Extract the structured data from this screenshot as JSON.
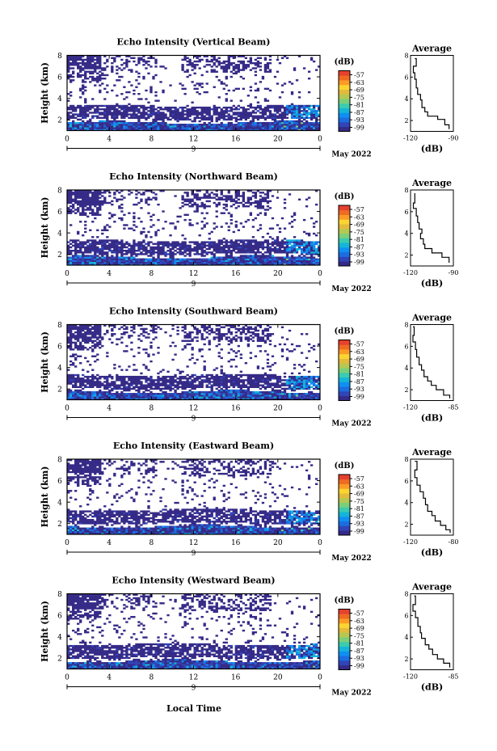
{
  "figure": {
    "xaxis_title": "Local Time",
    "date_label": "May 2022",
    "colorbar_unit": "(dB)",
    "colorbar_ticks": [
      "-57",
      "-63",
      "-69",
      "-75",
      "-81",
      "-87",
      "-93",
      "-99"
    ],
    "colormap": [
      "#352a87",
      "#3144b8",
      "#1b6de0",
      "#0f8ff2",
      "#14b5d8",
      "#3bcbb0",
      "#7ccf7a",
      "#b5c853",
      "#e3bb3c",
      "#fbd430",
      "#fb9b26",
      "#f06b22",
      "#e6412e"
    ],
    "x_ticks": [
      "0",
      "4",
      "8",
      "12",
      "16",
      "20",
      "0"
    ],
    "y_ticks": [
      "2",
      "4",
      "6",
      "8"
    ],
    "y_label": "Height (km)",
    "avg_title": "Average",
    "avg_xlabel": "(dB)"
  },
  "chart_data": [
    {
      "type": "heatmap",
      "title": "Echo Intensity (Vertical Beam)",
      "xlabel": "",
      "ylabel": "Height (km)",
      "xlim": [
        0,
        24
      ],
      "ylim": [
        1,
        8
      ],
      "clim": [
        -99,
        -57
      ],
      "date_tick": "9",
      "avg_xticks": [
        "-120",
        "-90"
      ],
      "average_profile": {
        "type": "line",
        "xlim": [
          -120,
          -90
        ],
        "ylim": [
          1,
          8
        ],
        "points": [
          [
            -117,
            7.7
          ],
          [
            -116,
            7.0
          ],
          [
            -118,
            6.4
          ],
          [
            -117,
            5.8
          ],
          [
            -116,
            5.0
          ],
          [
            -115,
            4.4
          ],
          [
            -113,
            3.9
          ],
          [
            -112,
            3.2
          ],
          [
            -110,
            2.8
          ],
          [
            -108,
            2.4
          ],
          [
            -101,
            2.1
          ],
          [
            -96,
            1.6
          ],
          [
            -93,
            1.2
          ]
        ]
      }
    },
    {
      "type": "heatmap",
      "title": "Echo Intensity (Northward Beam)",
      "xlabel": "",
      "ylabel": "Height (km)",
      "xlim": [
        0,
        24
      ],
      "ylim": [
        1,
        8
      ],
      "clim": [
        -99,
        -57
      ],
      "date_tick": "9",
      "avg_xticks": [
        "-120",
        "-90"
      ],
      "average_profile": {
        "type": "line",
        "xlim": [
          -120,
          -90
        ],
        "ylim": [
          1,
          8
        ],
        "points": [
          [
            -117,
            7.7
          ],
          [
            -117,
            6.8
          ],
          [
            -118,
            6.3
          ],
          [
            -116,
            5.6
          ],
          [
            -115,
            5.0
          ],
          [
            -114,
            4.4
          ],
          [
            -112,
            4.0
          ],
          [
            -113,
            3.5
          ],
          [
            -111,
            3.0
          ],
          [
            -110,
            2.6
          ],
          [
            -105,
            2.2
          ],
          [
            -98,
            1.8
          ],
          [
            -93,
            1.3
          ]
        ]
      }
    },
    {
      "type": "heatmap",
      "title": "Echo Intensity (Southward Beam)",
      "xlabel": "",
      "ylabel": "Height (km)",
      "xlim": [
        0,
        24
      ],
      "ylim": [
        1,
        8
      ],
      "clim": [
        -99,
        -57
      ],
      "date_tick": "9",
      "avg_xticks": [
        "-120",
        "-85"
      ],
      "average_profile": {
        "type": "line",
        "xlim": [
          -120,
          -85
        ],
        "ylim": [
          1,
          8
        ],
        "points": [
          [
            -118,
            7.8
          ],
          [
            -117,
            7.0
          ],
          [
            -118,
            6.4
          ],
          [
            -116,
            5.7
          ],
          [
            -115,
            5.0
          ],
          [
            -113,
            4.3
          ],
          [
            -111,
            3.8
          ],
          [
            -109,
            3.2
          ],
          [
            -106,
            2.8
          ],
          [
            -103,
            2.4
          ],
          [
            -99,
            2.0
          ],
          [
            -93,
            1.5
          ],
          [
            -88,
            1.2
          ]
        ]
      }
    },
    {
      "type": "heatmap",
      "title": "Echo Intensity (Eastward Beam)",
      "xlabel": "",
      "ylabel": "Height (km)",
      "xlim": [
        0,
        24
      ],
      "ylim": [
        1,
        8
      ],
      "clim": [
        -99,
        -57
      ],
      "date_tick": "9",
      "avg_xticks": [
        "-120",
        "-80"
      ],
      "average_profile": {
        "type": "line",
        "xlim": [
          -120,
          -80
        ],
        "ylim": [
          1,
          8
        ],
        "points": [
          [
            -116,
            7.8
          ],
          [
            -114,
            7.0
          ],
          [
            -116,
            6.3
          ],
          [
            -114,
            5.6
          ],
          [
            -111,
            5.0
          ],
          [
            -108,
            4.4
          ],
          [
            -106,
            3.8
          ],
          [
            -104,
            3.2
          ],
          [
            -100,
            2.8
          ],
          [
            -97,
            2.3
          ],
          [
            -92,
            1.9
          ],
          [
            -87,
            1.5
          ],
          [
            -83,
            1.2
          ]
        ]
      }
    },
    {
      "type": "heatmap",
      "title": "Echo Intensity (Westward Beam)",
      "xlabel": "Local Time",
      "ylabel": "Height (km)",
      "xlim": [
        0,
        24
      ],
      "ylim": [
        1,
        8
      ],
      "clim": [
        -99,
        -57
      ],
      "date_tick": "9",
      "avg_xticks": [
        "-120",
        "-85"
      ],
      "average_profile": {
        "type": "line",
        "xlim": [
          -120,
          -85
        ],
        "ylim": [
          1,
          8
        ],
        "points": [
          [
            -117,
            7.8
          ],
          [
            -116,
            7.0
          ],
          [
            -118,
            6.4
          ],
          [
            -116,
            5.8
          ],
          [
            -114,
            5.0
          ],
          [
            -112,
            4.4
          ],
          [
            -111,
            3.9
          ],
          [
            -108,
            3.3
          ],
          [
            -105,
            2.9
          ],
          [
            -102,
            2.4
          ],
          [
            -98,
            2.0
          ],
          [
            -93,
            1.6
          ],
          [
            -88,
            1.2
          ]
        ]
      }
    }
  ]
}
